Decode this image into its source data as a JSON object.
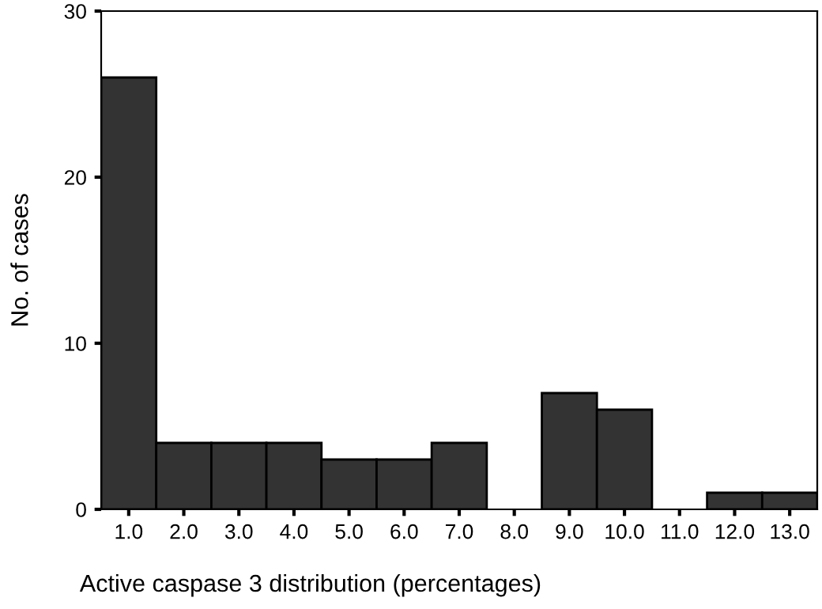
{
  "chart_data": {
    "type": "histogram",
    "xlabel": "Active caspase 3 distribution (percentages)",
    "ylabel": "No. of cases",
    "bins": [
      0.5,
      1.5,
      2.5,
      3.5,
      4.5,
      5.5,
      6.5,
      7.5,
      8.5,
      9.5,
      10.5,
      11.5,
      12.5,
      13.5
    ],
    "values": [
      26,
      4,
      4,
      4,
      3,
      3,
      4,
      0,
      7,
      6,
      0,
      1,
      1
    ],
    "color": "#333333",
    "xlim": [
      0.5,
      13.5
    ],
    "xticks": [
      {
        "value": 1,
        "label": "1.0"
      },
      {
        "value": 2,
        "label": "2.0"
      },
      {
        "value": 3,
        "label": "3.0"
      },
      {
        "value": 4,
        "label": "4.0"
      },
      {
        "value": 5,
        "label": "5.0"
      },
      {
        "value": 6,
        "label": "6.0"
      },
      {
        "value": 7,
        "label": "7.0"
      },
      {
        "value": 8,
        "label": "8.0"
      },
      {
        "value": 9,
        "label": "9.0"
      },
      {
        "value": 10,
        "label": "10.0"
      },
      {
        "value": 11,
        "label": "11.0"
      },
      {
        "value": 12,
        "label": "12.0"
      },
      {
        "value": 13,
        "label": "13.0"
      }
    ],
    "ylim": [
      0,
      30
    ],
    "yticks": [
      0,
      10,
      20,
      30
    ],
    "grid": false,
    "legend": false
  }
}
